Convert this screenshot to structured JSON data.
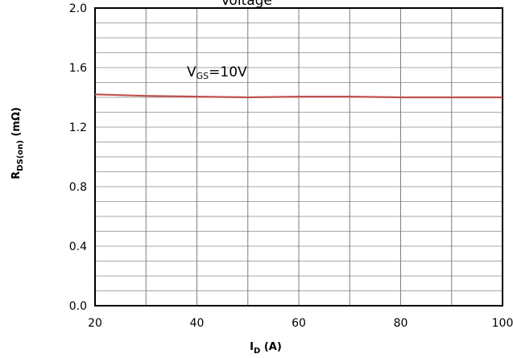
{
  "chart_data": {
    "type": "line",
    "title": "Voltage",
    "xlabel": {
      "main": "I",
      "sub": "D",
      "tail": " (A)"
    },
    "ylabel": {
      "main": "R",
      "sub": "DS(on)",
      "tail": " (mΩ)"
    },
    "xlim": [
      20,
      100
    ],
    "ylim": [
      0.0,
      2.0
    ],
    "x_ticks": [
      20,
      40,
      60,
      80,
      100
    ],
    "y_ticks": [
      0.0,
      0.4,
      0.8,
      1.2,
      1.6,
      2.0
    ],
    "y_tick_labels": [
      "0.0",
      "0.4",
      "0.8",
      "1.2",
      "1.6",
      "2.0"
    ],
    "x_tick_labels": [
      "20",
      "40",
      "60",
      "80",
      "100"
    ],
    "grid": true,
    "annotation": {
      "main": "V",
      "sub": "GS",
      "tail": "=10V",
      "x": 39,
      "y": 1.6
    },
    "series": [
      {
        "color": "#c0504d",
        "x": [
          20,
          30,
          40,
          50,
          60,
          70,
          80,
          90,
          100
        ],
        "y": [
          1.42,
          1.41,
          1.405,
          1.4,
          1.405,
          1.405,
          1.4,
          1.4,
          1.4
        ]
      }
    ]
  }
}
